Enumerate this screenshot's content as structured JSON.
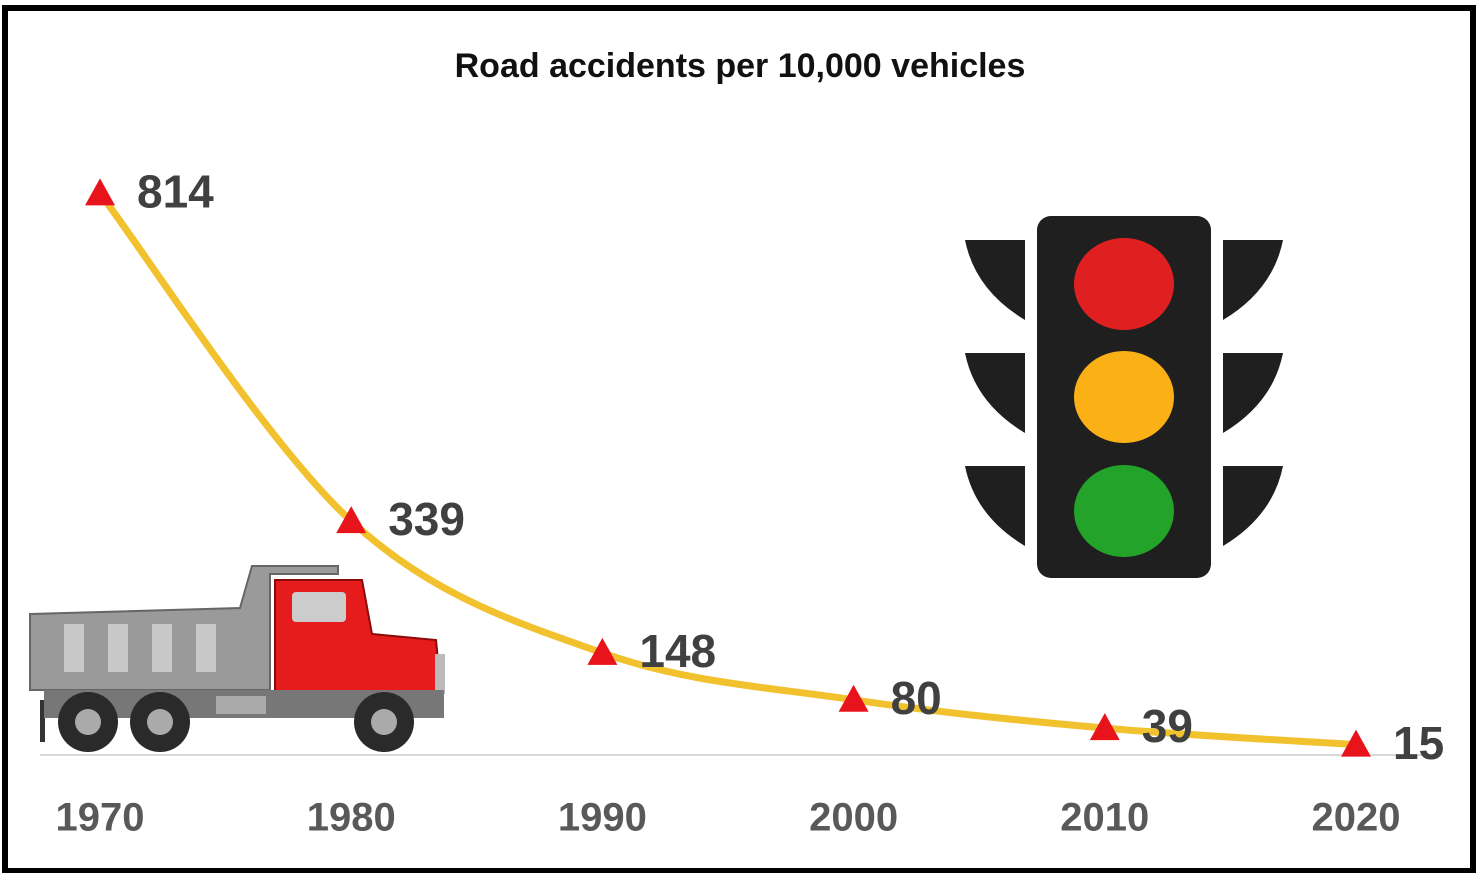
{
  "chart_data": {
    "type": "line",
    "title": "Road accidents per 10,000 vehicles",
    "categories": [
      "1970",
      "1980",
      "1990",
      "2000",
      "2010",
      "2020"
    ],
    "series": [
      {
        "name": "Road accidents per 10,000 vehicles",
        "color": "#f2c12e",
        "marker_color": "#e8141b",
        "values": [
          814,
          339,
          148,
          80,
          39,
          15
        ]
      }
    ],
    "ylim": [
      0,
      900
    ]
  }
}
